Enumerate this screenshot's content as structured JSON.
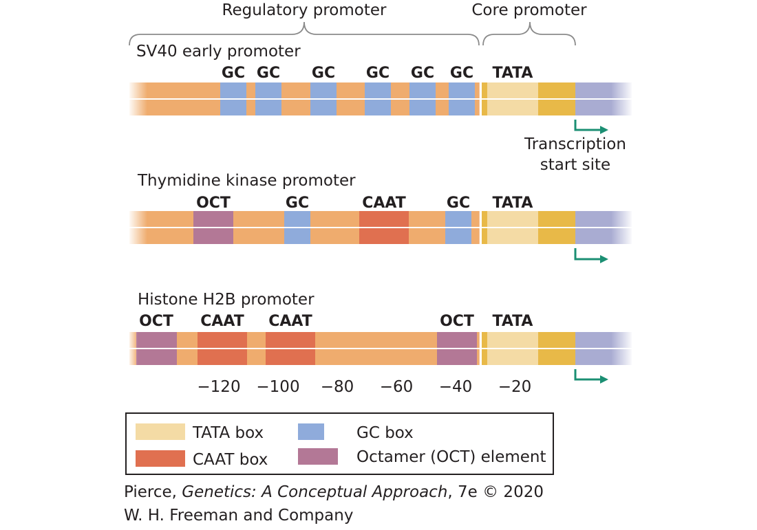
{
  "header": {
    "regulatory_label": "Regulatory promoter",
    "core_label": "Core promoter"
  },
  "colors": {
    "background_dna": "#efac6e",
    "tata_box": "#f4dba5",
    "tata_flank": "#e8b948",
    "gc_box": "#8fabdb",
    "caat_box": "#e07050",
    "oct_element": "#b37896",
    "coding_region": "#a9acd2",
    "arrow": "#1b8f73",
    "bracket": "#8a8a8a"
  },
  "promoters": [
    {
      "name": "SV40 early promoter",
      "elements": [
        {
          "type": "gc",
          "label": "GC"
        },
        {
          "type": "gc",
          "label": "GC"
        },
        {
          "type": "gc",
          "label": "GC"
        },
        {
          "type": "gc",
          "label": "GC"
        },
        {
          "type": "gc",
          "label": "GC"
        },
        {
          "type": "gc",
          "label": "GC"
        },
        {
          "type": "tata",
          "label": "TATA"
        }
      ],
      "start_site_label": [
        "Transcription",
        "start site"
      ]
    },
    {
      "name": "Thymidine kinase promoter",
      "elements": [
        {
          "type": "oct",
          "label": "OCT"
        },
        {
          "type": "gc",
          "label": "GC"
        },
        {
          "type": "caat",
          "label": "CAAT"
        },
        {
          "type": "gc",
          "label": "GC"
        },
        {
          "type": "tata",
          "label": "TATA"
        }
      ]
    },
    {
      "name": "Histone H2B promoter",
      "elements": [
        {
          "type": "oct",
          "label": "OCT"
        },
        {
          "type": "caat",
          "label": "CAAT"
        },
        {
          "type": "caat",
          "label": "CAAT"
        },
        {
          "type": "oct",
          "label": "OCT"
        },
        {
          "type": "tata",
          "label": "TATA"
        }
      ]
    }
  ],
  "axis": {
    "ticks": [
      "−120",
      "−100",
      "−80",
      "−60",
      "−40",
      "−20"
    ]
  },
  "legend": {
    "items": [
      {
        "key": "tata",
        "label": "TATA box"
      },
      {
        "key": "caat",
        "label": "CAAT box"
      },
      {
        "key": "gc",
        "label": "GC box"
      },
      {
        "key": "oct",
        "label": "Octamer (OCT) element"
      }
    ]
  },
  "credit": {
    "line1_prefix": "Pierce, ",
    "line1_title": "Genetics: A Conceptual Approach",
    "line1_suffix": ", 7e © 2020",
    "line2": "W. H. Freeman and Company"
  }
}
